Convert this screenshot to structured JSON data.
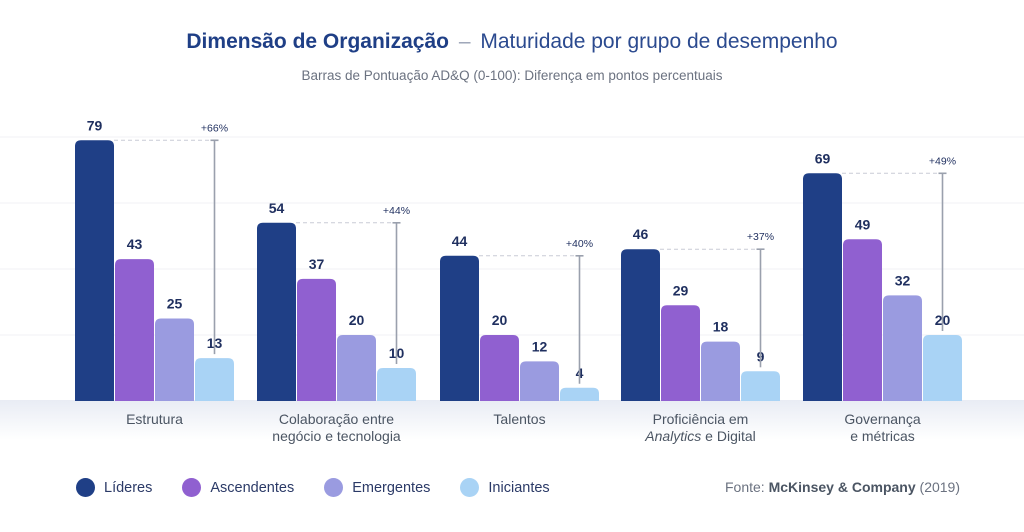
{
  "header": {
    "title_main": "Dimensão de Organização",
    "title_dash": "–",
    "title_rest": "Maturidade por grupo de desempenho",
    "subtitle": "Barras de Pontuação AD&Q (0-100): Diferença em pontos percentuais"
  },
  "chart_data": {
    "type": "bar",
    "categories": [
      [
        "Estrutura"
      ],
      [
        "Colaboração entre",
        "negócio e tecnologia"
      ],
      [
        "Talentos"
      ],
      [
        "Proficiência em",
        "Analytics e Digital"
      ],
      [
        "Governança",
        "e métricas"
      ]
    ],
    "series": [
      {
        "name": "Líderes",
        "color": "#1f3f86",
        "values": [
          79,
          54,
          44,
          46,
          69
        ]
      },
      {
        "name": "Ascendentes",
        "color": "#9060d0",
        "values": [
          43,
          37,
          20,
          29,
          49
        ]
      },
      {
        "name": "Emergentes",
        "color": "#9a9be0",
        "values": [
          25,
          20,
          12,
          18,
          32
        ]
      },
      {
        "name": "Iniciantes",
        "color": "#a9d3f5",
        "values": [
          13,
          10,
          4,
          9,
          20
        ]
      }
    ],
    "differences": [
      "+66%",
      "+44%",
      "+40%",
      "+37%",
      "+49%"
    ],
    "ylim": [
      0,
      100
    ],
    "grid": true,
    "legend_placement": "bottom-left"
  },
  "legend": [
    {
      "label": "Líderes",
      "color": "#1f3f86"
    },
    {
      "label": "Ascendentes",
      "color": "#9060d0"
    },
    {
      "label": "Emergentes",
      "color": "#9a9be0"
    },
    {
      "label": "Iniciantes",
      "color": "#a9d3f5"
    }
  ],
  "source": {
    "prefix": "Fonte:",
    "brand": "McKinsey & Company",
    "year": "(2019)"
  }
}
